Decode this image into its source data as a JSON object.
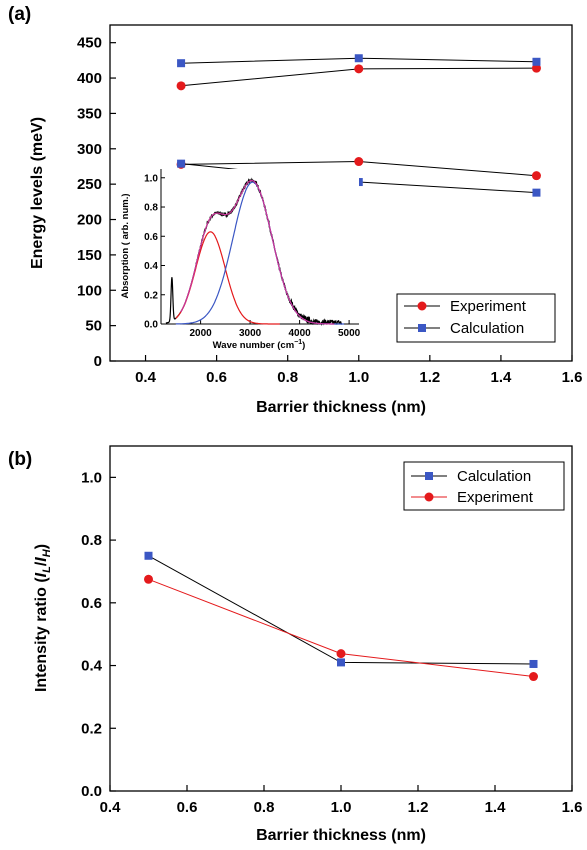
{
  "chart_data": [
    {
      "panel_label": "(a)",
      "type": "line",
      "xlabel": "Barrier thickness (nm)",
      "ylabel": "Energy levels (meV)",
      "xlim": [
        0.3,
        1.6
      ],
      "ylim": [
        0,
        475
      ],
      "xticks": [
        "0.4",
        "0.6",
        "0.8",
        "1.0",
        "1.2",
        "1.4",
        "1.6"
      ],
      "yticks": [
        "0",
        "50",
        "100",
        "150",
        "200",
        "250",
        "300",
        "350",
        "400",
        "450"
      ],
      "x": [
        0.5,
        1.0,
        1.5
      ],
      "series": [
        {
          "name": "Experiment",
          "color": "#e41a1c",
          "marker": "circle",
          "groups": [
            [
              389,
              413,
              414
            ],
            [
              278,
              282,
              262
            ]
          ]
        },
        {
          "name": "Calculation",
          "color": "#3b57c4",
          "marker": "square",
          "groups": [
            [
              421,
              428,
              423
            ],
            [
              279,
              253,
              238
            ]
          ]
        }
      ],
      "legend": "bottom-right",
      "inset": {
        "type": "line",
        "xlabel": "Wave number (cm",
        "xlabel_sup": "−1",
        "xlabel_end": ")",
        "ylabel": "Absorption ( arb. num.)",
        "xlim": [
          1200,
          5200
        ],
        "ylim": [
          0,
          1.06
        ],
        "xticks": [
          "2000",
          "3000",
          "4000",
          "5000"
        ],
        "yticks": [
          "0.0",
          "0.2",
          "0.4",
          "0.6",
          "0.8",
          "1.0"
        ],
        "measured_color": "#000000",
        "fit_color": "#cc3399",
        "gauss_low": {
          "center": 2200,
          "width": 420,
          "amp": 0.63,
          "color": "#e41a1c"
        },
        "gauss_high": {
          "center": 3050,
          "width": 560,
          "amp": 0.97,
          "color": "#3b57c4"
        }
      }
    },
    {
      "panel_label": "(b)",
      "type": "line",
      "xlabel": "Barrier thickness (nm)",
      "ylabel_parts": [
        "Intensity ratio (",
        "I",
        "L",
        "/",
        "I",
        "H",
        ")"
      ],
      "xlim": [
        0.4,
        1.6
      ],
      "ylim": [
        0.0,
        1.1
      ],
      "xticks": [
        "0.4",
        "0.6",
        "0.8",
        "1.0",
        "1.2",
        "1.4",
        "1.6"
      ],
      "yticks": [
        "0.0",
        "0.2",
        "0.4",
        "0.6",
        "0.8",
        "1.0"
      ],
      "x": [
        0.5,
        1.0,
        1.5
      ],
      "series": [
        {
          "name": "Calculation",
          "color": "#3b57c4",
          "line_color": "#000000",
          "marker": "square",
          "values": [
            0.75,
            0.41,
            0.405
          ]
        },
        {
          "name": "Experiment",
          "color": "#e41a1c",
          "line_color": "#e41a1c",
          "marker": "circle",
          "values": [
            0.675,
            0.438,
            0.365
          ]
        }
      ],
      "legend": "top-right"
    }
  ]
}
